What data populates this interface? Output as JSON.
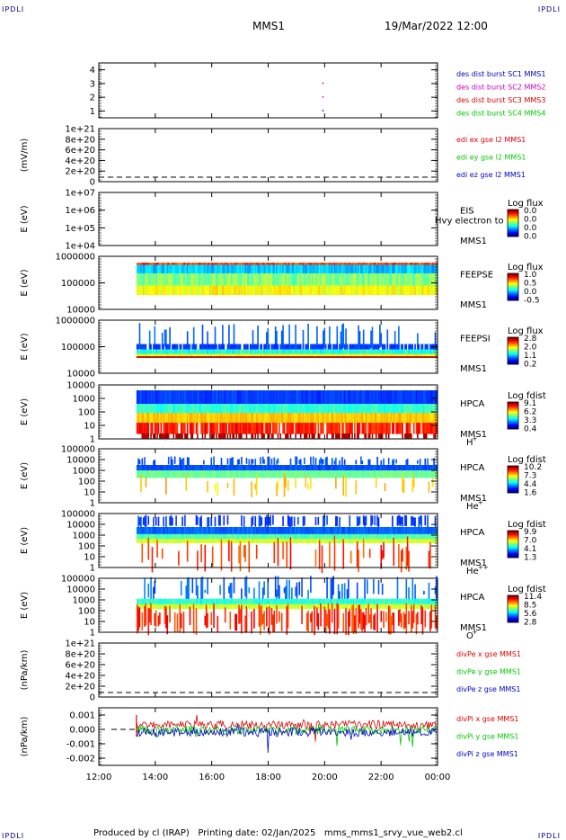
{
  "header": {
    "corner_label": "IPDLI",
    "title": "MMS1",
    "datetime": "19/Mar/2022 12:00"
  },
  "footer": {
    "text": "Produced by cl (IRAP)   Printing date: 02/Jan/2025   mms_mms1_srvy_vue_web2.cl"
  },
  "chart_data": [
    {
      "type": "scatter",
      "ylabel": "",
      "y_ticks": [
        "1",
        "2",
        "3",
        "4"
      ],
      "ylim": [
        0.5,
        4.5
      ],
      "points": [
        {
          "x": "19:55",
          "y": 3
        },
        {
          "x": "19:55",
          "y": 2
        },
        {
          "x": "19:55",
          "y": 1
        }
      ],
      "legend": [
        {
          "text": "des dist burst SC1 MMS1",
          "color": "#0000c8"
        },
        {
          "text": "des dist burst SC2 MMS2",
          "color": "#c800c8"
        },
        {
          "text": "des dist burst SC3 MMS3",
          "color": "#dc0000"
        },
        {
          "text": "des dist burst SC4 MMS4",
          "color": "#00c800"
        }
      ]
    },
    {
      "type": "line",
      "ylabel": "(mV/m)",
      "y_ticks": [
        "1e+21",
        "8e+20",
        "6e+20",
        "4e+20",
        "2e+20",
        "0"
      ],
      "legend": [
        {
          "text": "edi ex gse l2 MMS1",
          "color": "#dc0000"
        },
        {
          "text": "edi ey gse l2 MMS1",
          "color": "#00c800"
        },
        {
          "text": "edi ez gse l2 MMS1",
          "color": "#0000c8"
        }
      ]
    },
    {
      "type": "heatmap",
      "ylabel": "E (eV)",
      "y_ticks": [
        "1e+07",
        "1e+06",
        "1e+05",
        "1e+04"
      ],
      "labels": [
        "EIS",
        "MMS1"
      ],
      "overlay_text": "Hvy electron to",
      "colorbar": {
        "title": "Log flux",
        "ticks": [
          "0.0",
          "0.0",
          "0.0",
          "0.0"
        ]
      }
    },
    {
      "type": "heatmap",
      "ylabel": "E (eV)",
      "y_ticks": [
        "1000000",
        "100000",
        "10000"
      ],
      "labels": [
        "FEEPSE",
        "MMS1"
      ],
      "colorbar": {
        "title": "Log flux",
        "ticks": [
          "1.0",
          "0.5",
          "0.0",
          "-0.5"
        ]
      }
    },
    {
      "type": "heatmap",
      "ylabel": "E (eV)",
      "y_ticks": [
        "1000000",
        "100000",
        "10000"
      ],
      "labels": [
        "FEEPSI",
        "MMS1"
      ],
      "colorbar": {
        "title": "Log flux",
        "ticks": [
          "2.8",
          "2.0",
          "1.1",
          "0.2"
        ]
      }
    },
    {
      "type": "heatmap",
      "ylabel": "E (eV)",
      "y_ticks": [
        "10000",
        "1000",
        "100",
        "10",
        "1"
      ],
      "labels": [
        "HPCA",
        "MMS1"
      ],
      "species": "H",
      "species_sup": "+",
      "colorbar": {
        "title": "Log fdist",
        "ticks": [
          "9.1",
          "6.2",
          "3.3",
          "0.4"
        ]
      }
    },
    {
      "type": "heatmap",
      "ylabel": "E (eV)",
      "y_ticks": [
        "100000",
        "10000",
        "1000",
        "100",
        "10",
        "1"
      ],
      "labels": [
        "HPCA",
        "MMS1"
      ],
      "species": "He",
      "species_sup": "+",
      "colorbar": {
        "title": "Log fdist",
        "ticks": [
          "10.2",
          "7.3",
          "4.4",
          "1.6"
        ]
      }
    },
    {
      "type": "heatmap",
      "ylabel": "E (eV)",
      "y_ticks": [
        "100000",
        "10000",
        "1000",
        "100",
        "10",
        "1"
      ],
      "labels": [
        "HPCA",
        "MMS1"
      ],
      "species": "He",
      "species_sup": "++",
      "colorbar": {
        "title": "Log fdist",
        "ticks": [
          "9.9",
          "7.0",
          "4.1",
          "1.3"
        ]
      }
    },
    {
      "type": "heatmap",
      "ylabel": "E (eV)",
      "y_ticks": [
        "100000",
        "10000",
        "1000",
        "100",
        "10",
        "1"
      ],
      "labels": [
        "HPCA",
        "MMS1"
      ],
      "species": "O",
      "species_sup": "+",
      "colorbar": {
        "title": "Log fdist",
        "ticks": [
          "11.4",
          "8.5",
          "5.6",
          "2.8"
        ]
      }
    },
    {
      "type": "line",
      "ylabel": "(nPa/km)",
      "y_ticks": [
        "1e+21",
        "8e+20",
        "6e+20",
        "4e+20",
        "2e+20",
        "0"
      ],
      "legend": [
        {
          "text": "divPe x gse MMS1",
          "color": "#dc0000"
        },
        {
          "text": "divPe y gse MMS1",
          "color": "#00c800"
        },
        {
          "text": "divPe z gse MMS1",
          "color": "#0000c8"
        }
      ]
    },
    {
      "type": "line",
      "ylabel": "(nPa/km)",
      "y_ticks": [
        "0.001",
        "0.000",
        "-0.001",
        "-0.002"
      ],
      "ylim": [
        -0.0025,
        0.0015
      ],
      "legend": [
        {
          "text": "divPi x gse MMS1",
          "color": "#dc0000"
        },
        {
          "text": "divPi y gse MMS1",
          "color": "#00c800"
        },
        {
          "text": "divPi z gse MMS1",
          "color": "#0000c8"
        }
      ]
    }
  ],
  "time_axis": {
    "ticks": [
      "12:00",
      "14:00",
      "16:00",
      "18:00",
      "20:00",
      "22:00",
      "00:00"
    ],
    "data_start": "13:20"
  }
}
